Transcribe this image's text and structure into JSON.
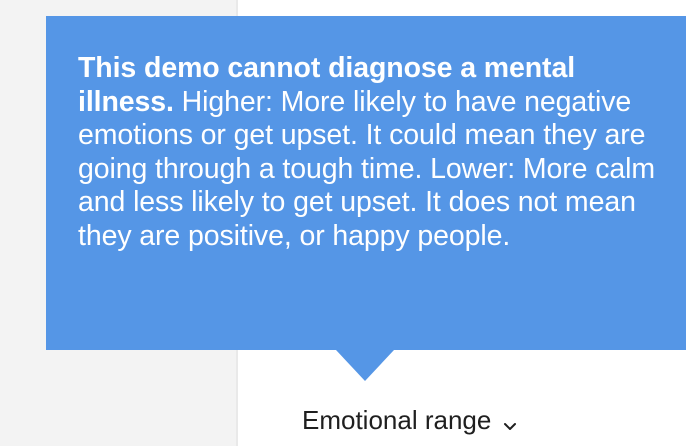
{
  "tooltip": {
    "bold_text": "This demo cannot diagnose a mental illness.",
    "body_text": " Higher: More likely to have negative emotions or get upset. It could mean they are going through a tough time. Lower: More calm and less likely to get upset. It does not mean they are positive, or happy people.",
    "background_color": "#5596e6",
    "text_color": "#ffffff"
  },
  "trait_selector": {
    "label": "Emotional range",
    "icon": "chevron-down-icon"
  }
}
